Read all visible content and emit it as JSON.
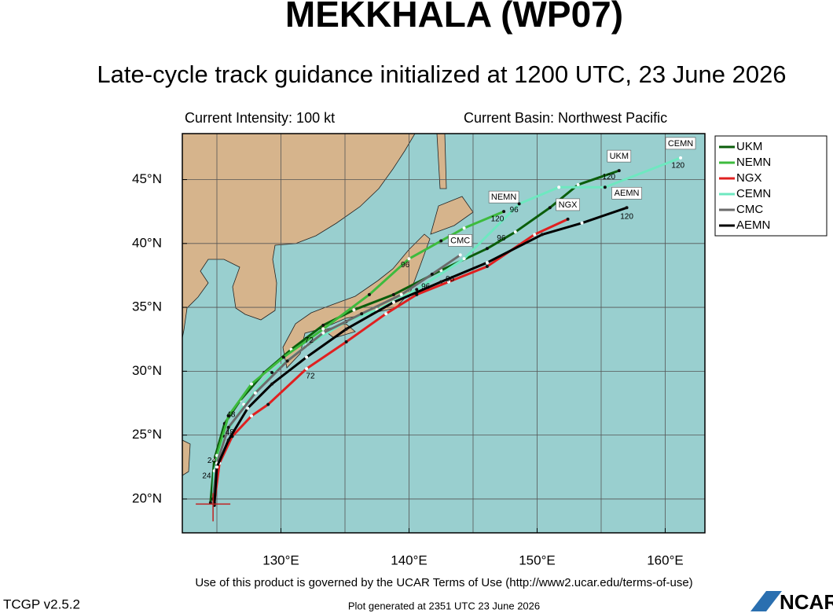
{
  "header": {
    "title": "MEKKHALA (WP07)",
    "subtitle": "Late-cycle track guidance initialized at 1200 UTC, 23 June 2026",
    "intensity": "Current Intensity: 100 kt",
    "basin": "Current Basin: Northwest Pacific"
  },
  "chart_data": {
    "type": "track-map",
    "xlim": [
      122.3,
      163.1
    ],
    "ylim": [
      17.35,
      48.6
    ],
    "xticks": [
      {
        "value": 130,
        "label": "130°E"
      },
      {
        "value": 140,
        "label": "140°E"
      },
      {
        "value": 150,
        "label": "150°E"
      },
      {
        "value": 160,
        "label": "160°E"
      }
    ],
    "yticks": [
      {
        "value": 20,
        "label": "20°N"
      },
      {
        "value": 25,
        "label": "25°N"
      },
      {
        "value": 30,
        "label": "30°N"
      },
      {
        "value": 35,
        "label": "35°N"
      },
      {
        "value": 40,
        "label": "40°N"
      },
      {
        "value": 45,
        "label": "45°N"
      }
    ],
    "xgrid": [
      125,
      130,
      135,
      140,
      145,
      150,
      155,
      160
    ],
    "ygrid": [
      20,
      25,
      30,
      35,
      40,
      45
    ],
    "grid": true,
    "legend": "right",
    "current_position": {
      "lon": 124.7,
      "lat": 19.6
    },
    "series": [
      {
        "name": "UKM",
        "color": "#0b5e0b",
        "lon": [
          124.5,
          124.8,
          125.6,
          126.8,
          128.7,
          130.8,
          133.3,
          135.7,
          138.8,
          142.5,
          146.1,
          148.3,
          151.0,
          153.2,
          156.4
        ],
        "lat": [
          19.7,
          23.1,
          25.9,
          27.7,
          29.9,
          31.7,
          33.6,
          34.8,
          36.0,
          37.9,
          39.6,
          40.9,
          42.8,
          44.6,
          45.7
        ]
      },
      {
        "name": "NEMN",
        "color": "#3dbb3d",
        "lon": [
          124.7,
          125.0,
          125.9,
          127.7,
          130.2,
          133.3,
          136.9,
          140.0,
          142.5,
          144.3,
          147.4
        ],
        "lat": [
          20.0,
          23.4,
          26.5,
          29.0,
          31.1,
          33.3,
          36.0,
          38.8,
          40.2,
          41.2,
          42.5
        ]
      },
      {
        "name": "NGX",
        "color": "#e02020",
        "lon": [
          124.8,
          125.2,
          126.2,
          127.7,
          129.0,
          132.0,
          135.1,
          138.2,
          140.6,
          143.1,
          146.1,
          149.8,
          152.4
        ],
        "lat": [
          19.7,
          22.8,
          24.9,
          26.5,
          27.4,
          30.2,
          32.3,
          34.5,
          36.0,
          37.0,
          38.2,
          40.7,
          41.9
        ]
      },
      {
        "name": "CEMN",
        "color": "#6ee8c0",
        "lon": [
          124.7,
          124.8,
          125.6,
          127.1,
          129.3,
          132.0,
          135.1,
          137.5,
          140.6,
          144.3,
          148.6,
          151.7,
          155.3,
          161.2
        ],
        "lat": [
          20.0,
          22.2,
          24.9,
          27.4,
          29.9,
          32.0,
          33.9,
          34.8,
          36.4,
          38.8,
          43.1,
          44.4,
          44.4,
          46.7
        ]
      },
      {
        "name": "CMC",
        "color": "#6b6b6b",
        "lon": [
          124.7,
          125.0,
          125.9,
          128.0,
          130.5,
          133.3,
          136.3,
          139.4,
          141.8,
          144.0
        ],
        "lat": [
          20.0,
          22.8,
          25.6,
          28.3,
          30.8,
          33.0,
          34.5,
          36.0,
          37.6,
          39.1
        ]
      },
      {
        "name": "AEMN",
        "color": "#000000",
        "lon": [
          124.8,
          125.0,
          125.9,
          127.4,
          129.3,
          132.0,
          135.1,
          138.8,
          142.5,
          146.1,
          150.4,
          153.5,
          157.0
        ],
        "lat": [
          19.5,
          22.5,
          24.6,
          27.1,
          29.0,
          31.1,
          33.3,
          35.4,
          37.0,
          38.5,
          40.7,
          41.6,
          42.8
        ]
      }
    ],
    "annotations": [
      {
        "text": "120",
        "lon": 155.6,
        "lat": 45.2
      },
      {
        "text": "120",
        "lon": 146.9,
        "lat": 41.9
      },
      {
        "text": "96",
        "lon": 148.2,
        "lat": 42.6
      },
      {
        "text": "96",
        "lon": 147.2,
        "lat": 40.4
      },
      {
        "text": "120",
        "lon": 161.0,
        "lat": 46.1
      },
      {
        "text": "120",
        "lon": 157.0,
        "lat": 42.1
      },
      {
        "text": "96",
        "lon": 139.7,
        "lat": 38.3
      },
      {
        "text": "96",
        "lon": 141.3,
        "lat": 36.6
      },
      {
        "text": "96",
        "lon": 143.2,
        "lat": 37.2
      },
      {
        "text": "72",
        "lon": 132.3,
        "lat": 29.6
      },
      {
        "text": "72",
        "lon": 132.2,
        "lat": 32.4
      },
      {
        "text": "48",
        "lon": 126.1,
        "lat": 26.6
      },
      {
        "text": "48",
        "lon": 126.0,
        "lat": 25.2
      },
      {
        "text": "24",
        "lon": 124.6,
        "lat": 23.0
      },
      {
        "text": "24",
        "lon": 124.2,
        "lat": 21.8
      }
    ]
  },
  "footer": {
    "terms": "Use of this product is governed by the UCAR Terms of Use (http://www2.ucar.edu/terms-of-use)",
    "version": "TCGP v2.5.2",
    "generated": "Plot generated at 2351 UTC   23 June 2026",
    "logo": "NCAR"
  }
}
